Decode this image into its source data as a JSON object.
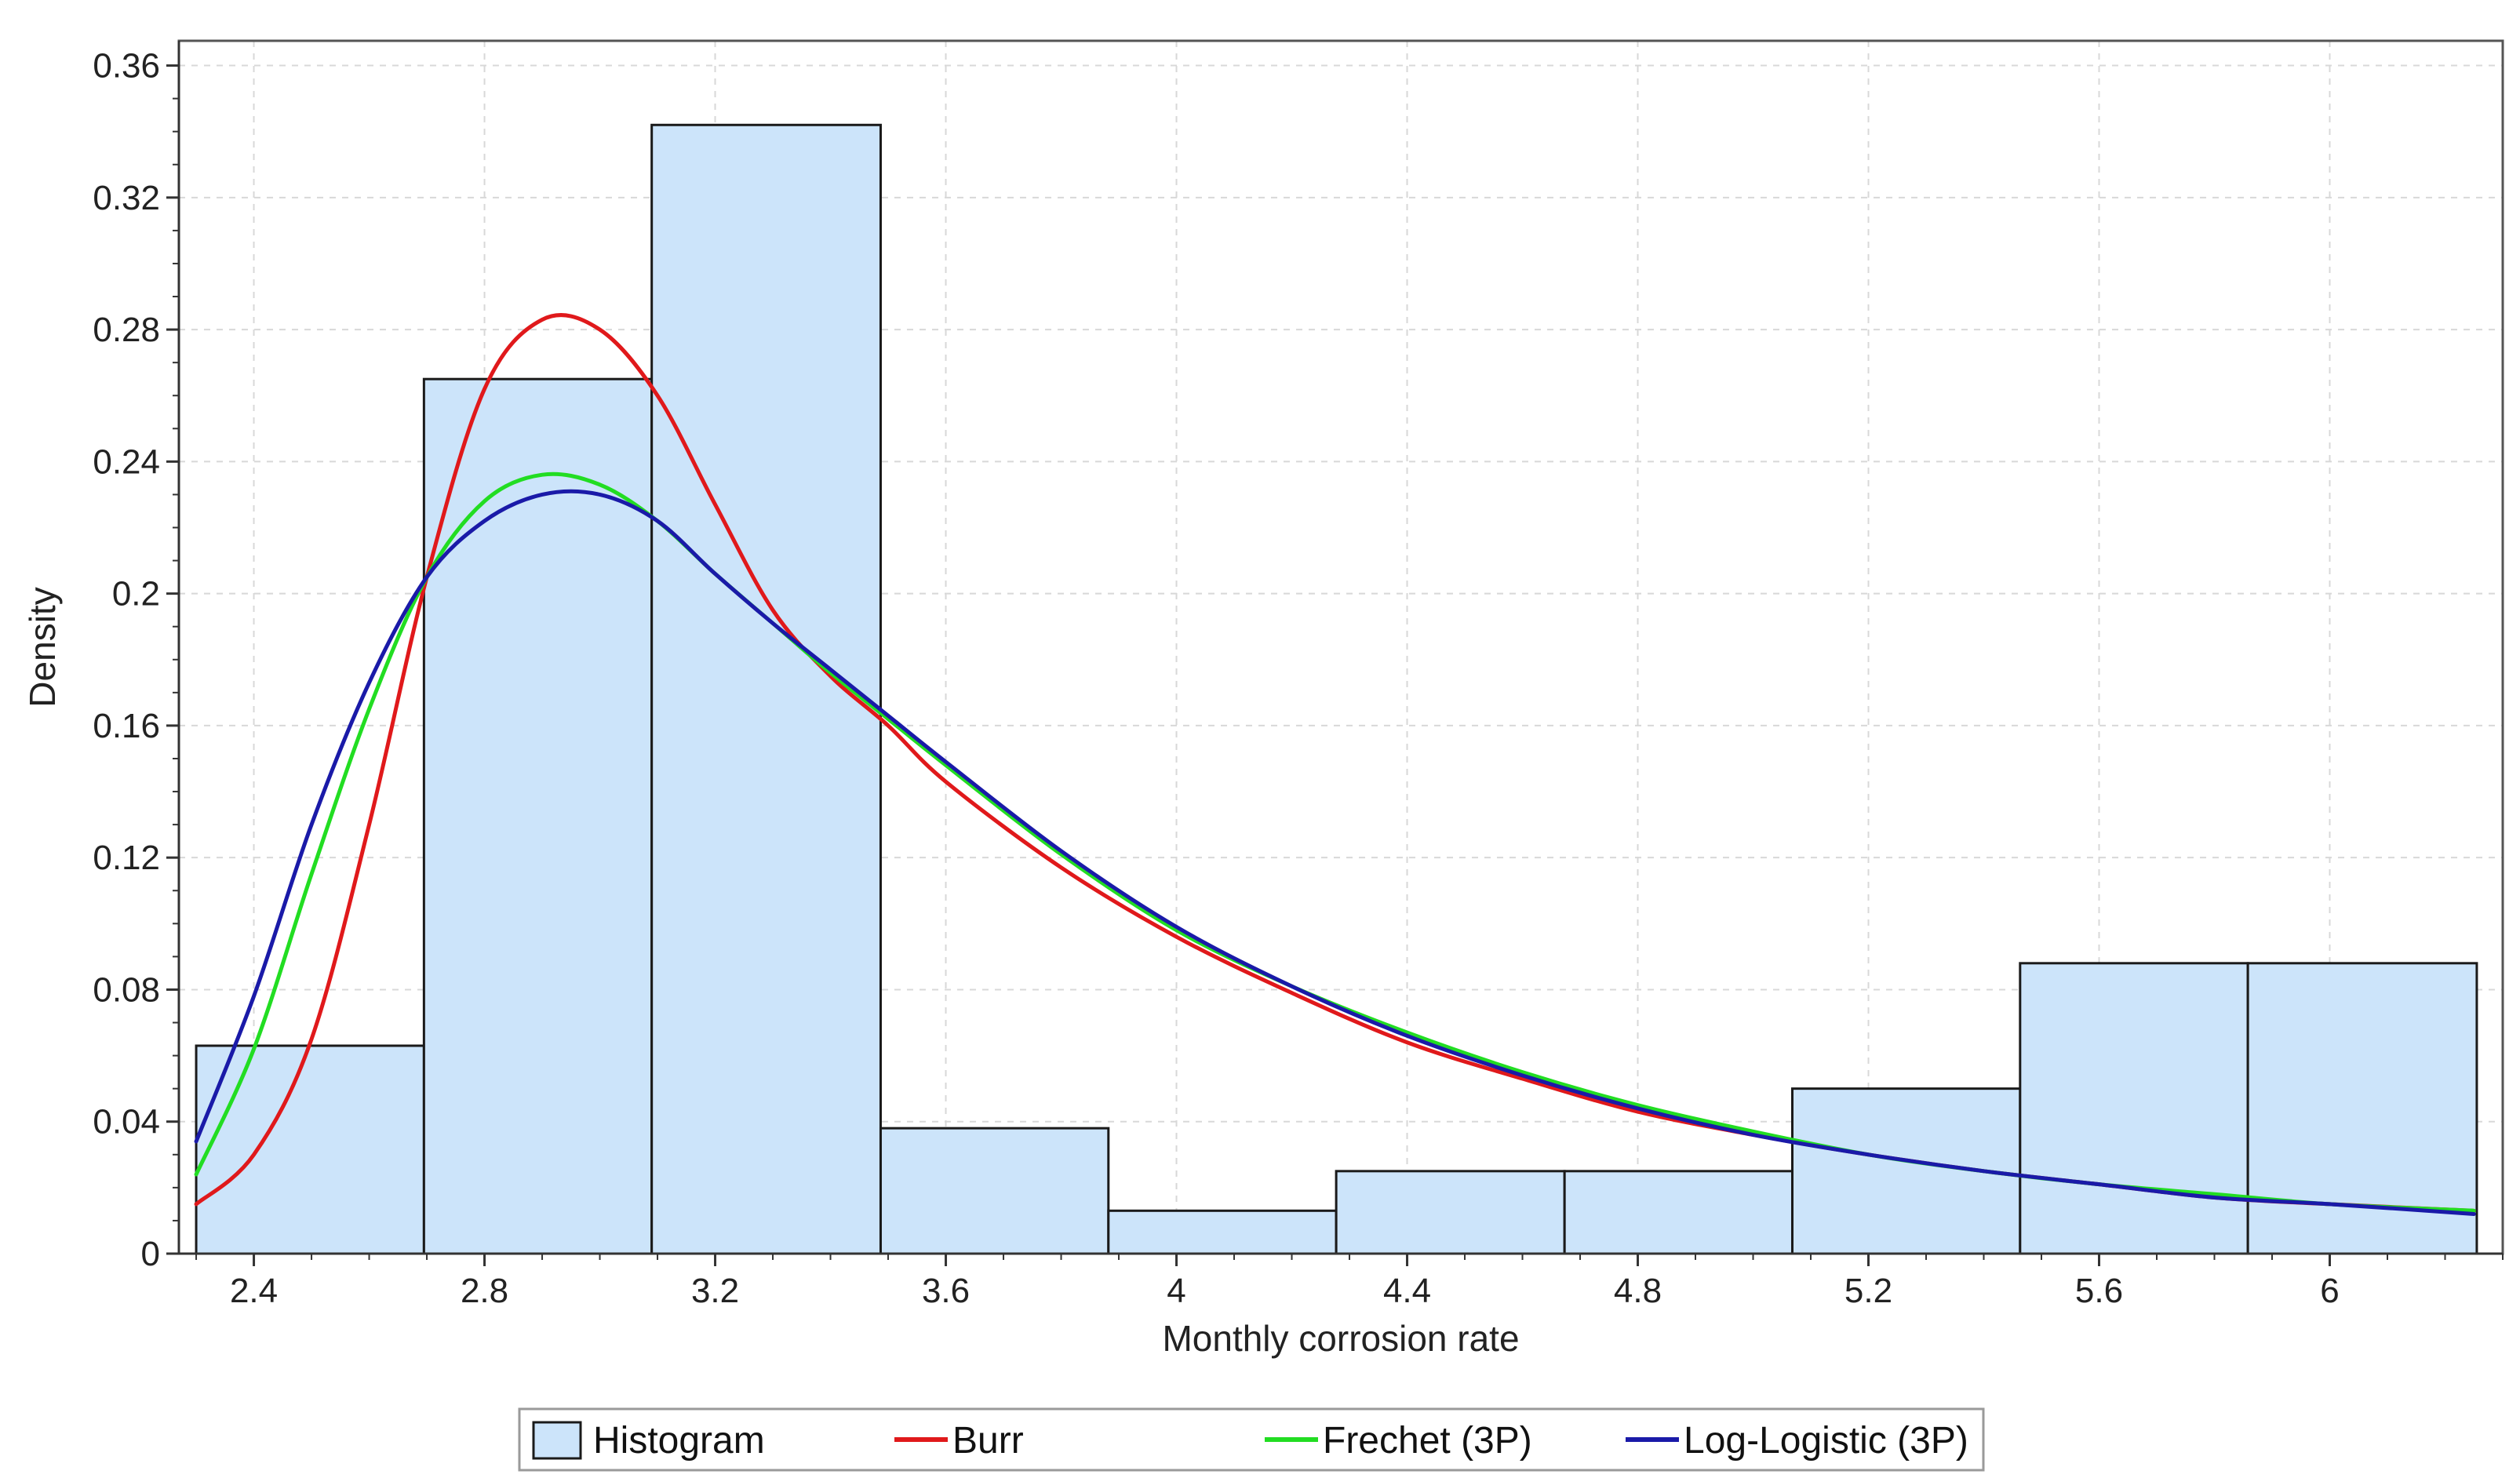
{
  "chart_data": {
    "type": "bar",
    "title": "",
    "xlabel": "Monthly corrosion rate",
    "ylabel": "Density",
    "xlim": [
      2.27,
      6.3
    ],
    "ylim": [
      0,
      0.3675
    ],
    "grid": true,
    "legend_position": "bottom-center",
    "xticks": [
      "2.4",
      "2.8",
      "3.2",
      "3.6",
      "4",
      "4.4",
      "4.8",
      "5.2",
      "5.6",
      "6"
    ],
    "xtick_values": [
      2.4,
      2.8,
      3.2,
      3.6,
      4.0,
      4.4,
      4.8,
      5.2,
      5.6,
      6.0
    ],
    "yticks": [
      "0",
      "0.04",
      "0.08",
      "0.12",
      "0.16",
      "0.2",
      "0.24",
      "0.28",
      "0.32",
      "0.36"
    ],
    "ytick_values": [
      0,
      0.04,
      0.08,
      0.12,
      0.16,
      0.2,
      0.24,
      0.28,
      0.32,
      0.36
    ],
    "histogram": {
      "name": "Histogram",
      "bin_edges": [
        2.3,
        2.695,
        3.09,
        3.487,
        3.882,
        4.277,
        4.673,
        5.068,
        5.463,
        5.858,
        6.255
      ],
      "values": [
        0.063,
        0.265,
        0.342,
        0.038,
        0.013,
        0.025,
        0.025,
        0.05,
        0.088,
        0.088
      ],
      "fill": "#cce4fa",
      "edge": "#1a1a1a"
    },
    "series": [
      {
        "name": "Burr",
        "color": "#e0191b",
        "x": [
          2.3,
          2.4,
          2.5,
          2.6,
          2.7,
          2.8,
          2.9,
          3.0,
          3.1,
          3.2,
          3.3,
          3.4,
          3.5,
          3.6,
          3.8,
          4.0,
          4.2,
          4.4,
          4.6,
          4.8,
          5.0,
          5.2,
          5.4,
          5.6,
          5.8,
          6.0,
          6.25
        ],
        "values": [
          0.015,
          0.03,
          0.065,
          0.13,
          0.205,
          0.262,
          0.283,
          0.28,
          0.26,
          0.227,
          0.195,
          0.175,
          0.16,
          0.143,
          0.117,
          0.096,
          0.079,
          0.064,
          0.053,
          0.043,
          0.036,
          0.03,
          0.025,
          0.021,
          0.017,
          0.015,
          0.013
        ]
      },
      {
        "name": "Frechet (3P)",
        "color": "#22dd22",
        "x": [
          2.3,
          2.4,
          2.5,
          2.6,
          2.7,
          2.8,
          2.9,
          3.0,
          3.1,
          3.2,
          3.3,
          3.4,
          3.5,
          3.6,
          3.8,
          4.0,
          4.2,
          4.4,
          4.6,
          4.8,
          5.0,
          5.2,
          5.4,
          5.6,
          5.8,
          6.0,
          6.25
        ],
        "values": [
          0.024,
          0.062,
          0.115,
          0.165,
          0.205,
          0.228,
          0.236,
          0.233,
          0.222,
          0.206,
          0.191,
          0.176,
          0.162,
          0.148,
          0.121,
          0.098,
          0.081,
          0.067,
          0.055,
          0.045,
          0.037,
          0.03,
          0.025,
          0.021,
          0.018,
          0.015,
          0.013
        ]
      },
      {
        "name": "Log-Logistic (3P)",
        "color": "#1a1aa8",
        "x": [
          2.3,
          2.4,
          2.5,
          2.6,
          2.7,
          2.8,
          2.9,
          3.0,
          3.1,
          3.2,
          3.3,
          3.4,
          3.5,
          3.6,
          3.8,
          4.0,
          4.2,
          4.4,
          4.6,
          4.8,
          5.0,
          5.2,
          5.4,
          5.6,
          5.8,
          6.0,
          6.25
        ],
        "values": [
          0.034,
          0.078,
          0.13,
          0.173,
          0.205,
          0.222,
          0.23,
          0.23,
          0.222,
          0.206,
          0.191,
          0.177,
          0.163,
          0.149,
          0.122,
          0.099,
          0.081,
          0.066,
          0.054,
          0.044,
          0.036,
          0.03,
          0.025,
          0.021,
          0.017,
          0.015,
          0.012
        ]
      }
    ],
    "legend": [
      "Histogram",
      "Burr",
      "Frechet (3P)",
      "Log-Logistic (3P)"
    ]
  }
}
